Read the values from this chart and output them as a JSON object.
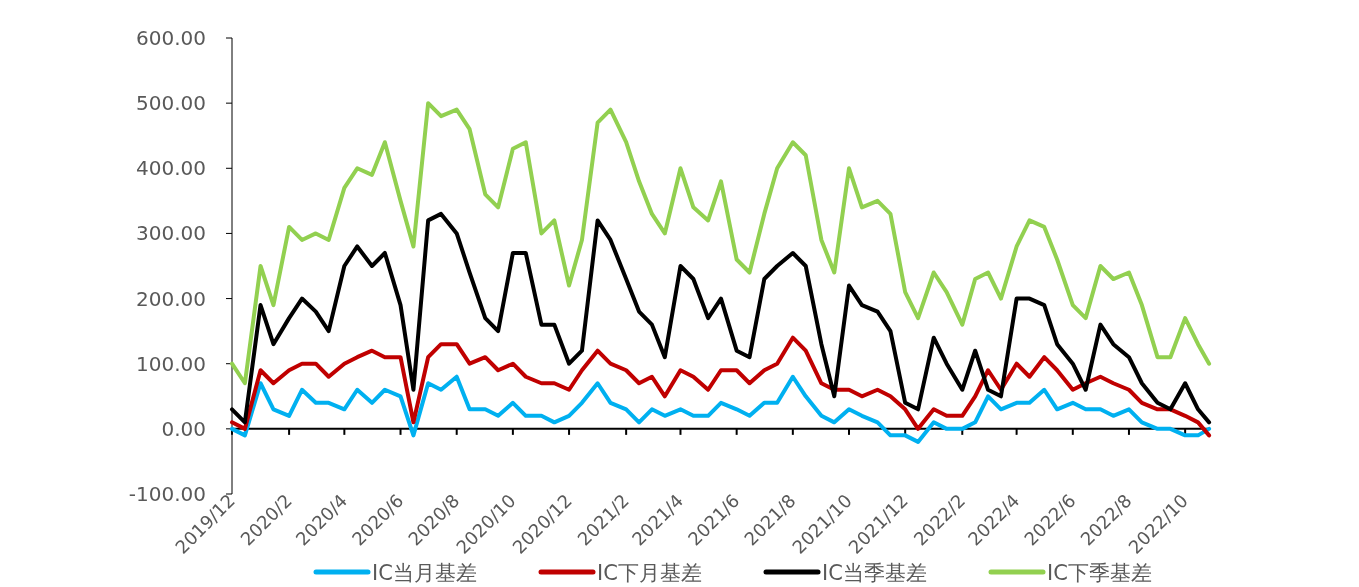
{
  "chart_data": {
    "type": "line",
    "x": [
      "2019-12-01",
      "2019-12-15",
      "2020-01-01",
      "2020-01-15",
      "2020-02-01",
      "2020-02-15",
      "2020-03-01",
      "2020-03-15",
      "2020-04-01",
      "2020-04-15",
      "2020-05-01",
      "2020-05-15",
      "2020-06-01",
      "2020-06-15",
      "2020-07-01",
      "2020-07-15",
      "2020-08-01",
      "2020-08-15",
      "2020-09-01",
      "2020-09-15",
      "2020-10-01",
      "2020-10-15",
      "2020-11-01",
      "2020-11-15",
      "2020-12-01",
      "2020-12-15",
      "2021-01-01",
      "2021-01-15",
      "2021-02-01",
      "2021-02-15",
      "2021-03-01",
      "2021-03-15",
      "2021-04-01",
      "2021-04-15",
      "2021-05-01",
      "2021-05-15",
      "2021-06-01",
      "2021-06-15",
      "2021-07-01",
      "2021-07-15",
      "2021-08-01",
      "2021-08-15",
      "2021-09-01",
      "2021-09-15",
      "2021-10-01",
      "2021-10-15",
      "2021-11-01",
      "2021-11-15",
      "2021-12-01",
      "2021-12-15",
      "2022-01-01",
      "2022-01-15",
      "2022-02-01",
      "2022-02-15",
      "2022-03-01",
      "2022-03-15",
      "2022-04-01",
      "2022-04-15",
      "2022-05-01",
      "2022-05-15",
      "2022-06-01",
      "2022-06-15",
      "2022-07-01",
      "2022-07-15",
      "2022-08-01",
      "2022-08-15",
      "2022-09-01",
      "2022-09-15",
      "2022-10-01",
      "2022-10-15",
      "2022-10-27"
    ],
    "series": [
      {
        "name": "IC当月基差",
        "color": "#00b0f0",
        "values": [
          0,
          -10,
          70,
          30,
          20,
          60,
          40,
          40,
          30,
          60,
          40,
          60,
          50,
          -10,
          70,
          60,
          80,
          30,
          30,
          20,
          40,
          20,
          20,
          10,
          20,
          40,
          70,
          40,
          30,
          10,
          30,
          20,
          30,
          20,
          20,
          40,
          30,
          20,
          40,
          40,
          80,
          50,
          20,
          10,
          30,
          20,
          10,
          -10,
          -10,
          -20,
          10,
          0,
          0,
          10,
          50,
          30,
          40,
          40,
          60,
          30,
          40,
          30,
          30,
          20,
          30,
          10,
          0,
          0,
          -10,
          -10,
          0
        ]
      },
      {
        "name": "IC下月基差",
        "color": "#c00000",
        "values": [
          10,
          0,
          90,
          70,
          90,
          100,
          100,
          80,
          100,
          110,
          120,
          110,
          110,
          10,
          110,
          130,
          130,
          100,
          110,
          90,
          100,
          80,
          70,
          70,
          60,
          90,
          120,
          100,
          90,
          70,
          80,
          50,
          90,
          80,
          60,
          90,
          90,
          70,
          90,
          100,
          140,
          120,
          70,
          60,
          60,
          50,
          60,
          50,
          30,
          0,
          30,
          20,
          20,
          50,
          90,
          60,
          100,
          80,
          110,
          90,
          60,
          70,
          80,
          70,
          60,
          40,
          30,
          30,
          20,
          10,
          -10
        ]
      },
      {
        "name": "IC当季基差",
        "color": "#000000",
        "values": [
          30,
          10,
          190,
          130,
          170,
          200,
          180,
          150,
          250,
          280,
          250,
          270,
          190,
          60,
          320,
          330,
          300,
          240,
          170,
          150,
          270,
          270,
          160,
          160,
          100,
          120,
          320,
          290,
          230,
          180,
          160,
          110,
          250,
          230,
          170,
          200,
          120,
          110,
          230,
          250,
          270,
          250,
          130,
          50,
          220,
          190,
          180,
          150,
          40,
          30,
          140,
          100,
          60,
          120,
          60,
          50,
          200,
          200,
          190,
          130,
          100,
          60,
          160,
          130,
          110,
          70,
          40,
          30,
          70,
          30,
          10
        ]
      },
      {
        "name": "IC下季基差",
        "color": "#92d050",
        "values": [
          100,
          70,
          250,
          190,
          310,
          290,
          300,
          290,
          370,
          400,
          390,
          440,
          350,
          280,
          500,
          480,
          490,
          460,
          360,
          340,
          430,
          440,
          300,
          320,
          220,
          290,
          470,
          490,
          440,
          380,
          330,
          300,
          400,
          340,
          320,
          380,
          260,
          240,
          330,
          400,
          440,
          420,
          290,
          240,
          400,
          340,
          350,
          330,
          210,
          170,
          240,
          210,
          160,
          230,
          240,
          200,
          280,
          320,
          310,
          260,
          190,
          170,
          250,
          230,
          240,
          190,
          110,
          110,
          170,
          130,
          100
        ]
      }
    ],
    "xlim": [
      "2019-12-01",
      "2022-10-28"
    ],
    "xticks": [
      {
        "value": "2019-12-01",
        "label": "2019/12"
      },
      {
        "value": "2020-02-01",
        "label": "2020/2"
      },
      {
        "value": "2020-04-01",
        "label": "2020/4"
      },
      {
        "value": "2020-06-01",
        "label": "2020/6"
      },
      {
        "value": "2020-08-01",
        "label": "2020/8"
      },
      {
        "value": "2020-10-01",
        "label": "2020/10"
      },
      {
        "value": "2020-12-01",
        "label": "2020/12"
      },
      {
        "value": "2021-02-01",
        "label": "2021/2"
      },
      {
        "value": "2021-04-01",
        "label": "2021/4"
      },
      {
        "value": "2021-06-01",
        "label": "2021/6"
      },
      {
        "value": "2021-08-01",
        "label": "2021/8"
      },
      {
        "value": "2021-10-01",
        "label": "2021/10"
      },
      {
        "value": "2021-12-01",
        "label": "2021/12"
      },
      {
        "value": "2022-02-01",
        "label": "2022/2"
      },
      {
        "value": "2022-04-01",
        "label": "2022/4"
      },
      {
        "value": "2022-06-01",
        "label": "2022/6"
      },
      {
        "value": "2022-08-01",
        "label": "2022/8"
      },
      {
        "value": "2022-10-01",
        "label": "2022/10"
      }
    ],
    "ylim": [
      -100,
      600
    ],
    "yticks": [
      {
        "value": -100,
        "label": "-100.00"
      },
      {
        "value": 0,
        "label": "0.00"
      },
      {
        "value": 100,
        "label": "100.00"
      },
      {
        "value": 200,
        "label": "200.00"
      },
      {
        "value": 300,
        "label": "300.00"
      },
      {
        "value": 400,
        "label": "400.00"
      },
      {
        "value": 500,
        "label": "500.00"
      },
      {
        "value": 600,
        "label": "600.00"
      }
    ],
    "legend": "bottom",
    "marker": "none",
    "line_style": "solid"
  }
}
